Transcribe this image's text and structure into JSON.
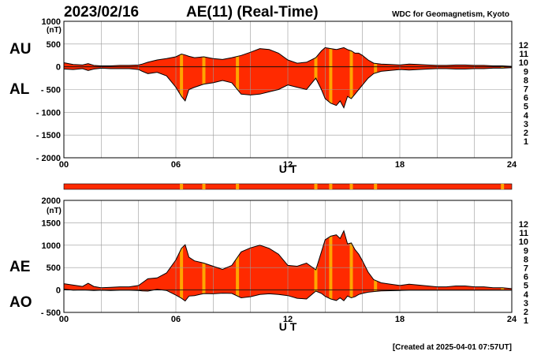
{
  "header": {
    "date": "2023/02/16",
    "title": "AE(11) (Real-Time)",
    "credit": "WDC for Geomagnetism, Kyoto",
    "created": "[Created at 2025-04-01 07:57UT]"
  },
  "colors": {
    "fill": "#ff2a00",
    "stripe": "#ffa500",
    "grid": "#9a9a9a",
    "scale": [
      "#c8c8c8",
      "#808080",
      "#000000",
      "#cc00cc",
      "#0000ff",
      "#0080ff",
      "#00dddd",
      "#00cc00",
      "#99dd00",
      "#ffd700",
      "#ff9900",
      "#ff0000",
      "#ff1493"
    ]
  },
  "chart_data": [
    {
      "type": "area",
      "panel": "AU/AL",
      "left_labels": [
        "AU",
        "AL"
      ],
      "unit": "(nT)",
      "xlabel": "U T",
      "xlim": [
        0,
        24
      ],
      "x_ticks": [
        "00",
        "06",
        "12",
        "18",
        "24"
      ],
      "x_tick_values": [
        0,
        6,
        12,
        18,
        24
      ],
      "ylim": [
        -2000,
        1000
      ],
      "y_ticks": [
        1000,
        500,
        0,
        -500,
        -1000,
        -1500,
        -2000
      ],
      "y_tick_labels": [
        "1000",
        "500",
        "0",
        "- 500",
        "- 1000",
        "- 1500",
        "- 2000"
      ],
      "grid": true,
      "x": [
        0,
        0.5,
        1,
        1.3,
        1.6,
        2,
        2.5,
        3,
        3.5,
        4,
        4.2,
        4.5,
        5,
        5.5,
        6,
        6.3,
        6.5,
        6.7,
        7,
        7.5,
        8,
        8.5,
        9,
        9.5,
        10,
        10.5,
        11,
        11.5,
        12,
        12.5,
        13,
        13.5,
        13.8,
        14,
        14.3,
        14.6,
        14.8,
        15,
        15.2,
        15.4,
        15.6,
        15.8,
        16,
        16.3,
        16.6,
        17,
        17.5,
        18,
        18.5,
        19,
        19.5,
        20,
        20.5,
        21,
        21.5,
        22,
        22.5,
        23,
        23.5,
        24
      ],
      "series": [
        {
          "name": "AU",
          "values": [
            90,
            50,
            40,
            70,
            30,
            20,
            20,
            30,
            30,
            40,
            60,
            100,
            150,
            180,
            220,
            280,
            260,
            230,
            200,
            220,
            180,
            160,
            200,
            250,
            320,
            400,
            380,
            300,
            150,
            80,
            100,
            200,
            350,
            420,
            400,
            380,
            400,
            420,
            380,
            350,
            300,
            300,
            250,
            150,
            80,
            60,
            50,
            40,
            60,
            50,
            40,
            30,
            30,
            40,
            40,
            30,
            30,
            20,
            20,
            10
          ]
        },
        {
          "name": "AL",
          "values": [
            -50,
            -60,
            -40,
            -80,
            -50,
            -30,
            -40,
            -40,
            -40,
            -60,
            -100,
            -150,
            -120,
            -200,
            -450,
            -650,
            -750,
            -500,
            -450,
            -380,
            -350,
            -300,
            -350,
            -600,
            -620,
            -600,
            -550,
            -500,
            -400,
            -450,
            -500,
            -250,
            -500,
            -700,
            -800,
            -850,
            -750,
            -900,
            -650,
            -700,
            -600,
            -500,
            -400,
            -250,
            -150,
            -100,
            -80,
            -60,
            -70,
            -60,
            -50,
            -40,
            -40,
            -50,
            -50,
            -40,
            -40,
            -30,
            -30,
            -20
          ]
        }
      ]
    },
    {
      "type": "area",
      "panel": "AE/AO",
      "left_labels": [
        "AE",
        "AO"
      ],
      "unit": "(nT)",
      "xlabel": "U T",
      "xlim": [
        0,
        24
      ],
      "x_ticks": [
        "00",
        "06",
        "12",
        "18",
        "24"
      ],
      "x_tick_values": [
        0,
        6,
        12,
        18,
        24
      ],
      "ylim": [
        -500,
        2000
      ],
      "y_ticks": [
        2000,
        1500,
        1000,
        500,
        0,
        -500
      ],
      "y_tick_labels": [
        "2000",
        "1500",
        "1000",
        "500",
        "0",
        "- 500"
      ],
      "grid": true,
      "x": [
        0,
        0.5,
        1,
        1.3,
        1.6,
        2,
        2.5,
        3,
        3.5,
        4,
        4.2,
        4.5,
        5,
        5.5,
        6,
        6.3,
        6.5,
        6.7,
        7,
        7.5,
        8,
        8.5,
        9,
        9.5,
        10,
        10.5,
        11,
        11.5,
        12,
        12.5,
        13,
        13.5,
        13.8,
        14,
        14.3,
        14.6,
        14.8,
        15,
        15.2,
        15.4,
        15.6,
        15.8,
        16,
        16.3,
        16.6,
        17,
        17.5,
        18,
        18.5,
        19,
        19.5,
        20,
        20.5,
        21,
        21.5,
        22,
        22.5,
        23,
        23.5,
        24
      ],
      "series": [
        {
          "name": "AE",
          "values": [
            140,
            110,
            80,
            150,
            80,
            50,
            60,
            70,
            70,
            100,
            160,
            250,
            270,
            380,
            670,
            930,
            1010,
            730,
            650,
            600,
            530,
            460,
            550,
            850,
            940,
            1000,
            930,
            800,
            550,
            530,
            600,
            450,
            850,
            1120,
            1200,
            1230,
            1150,
            1320,
            1030,
            1050,
            900,
            800,
            650,
            400,
            230,
            160,
            130,
            100,
            130,
            110,
            90,
            70,
            70,
            90,
            90,
            70,
            70,
            50,
            50,
            30
          ]
        },
        {
          "name": "AO",
          "values": [
            20,
            -5,
            0,
            -5,
            -10,
            -5,
            -10,
            -5,
            -5,
            -10,
            -20,
            -25,
            15,
            -10,
            -115,
            -185,
            -245,
            -135,
            -125,
            -80,
            -85,
            -70,
            -75,
            -175,
            -150,
            -100,
            -85,
            -100,
            -125,
            -185,
            -200,
            -25,
            -75,
            -140,
            -200,
            -235,
            -175,
            -240,
            -135,
            -175,
            -150,
            -100,
            -75,
            -50,
            -35,
            -20,
            -15,
            -10,
            -5,
            -5,
            -5,
            -5,
            -5,
            -5,
            -5,
            -5,
            -5,
            -5,
            -5,
            -5
          ]
        }
      ]
    }
  ],
  "stripes": [
    6.3,
    7.5,
    9.3,
    13.5,
    14.3,
    15.4,
    16.7,
    23.5
  ],
  "color_scale": [
    "1",
    "2",
    "3",
    "4",
    "5",
    "6",
    "7",
    "8",
    "9",
    "10",
    "11",
    "12"
  ]
}
